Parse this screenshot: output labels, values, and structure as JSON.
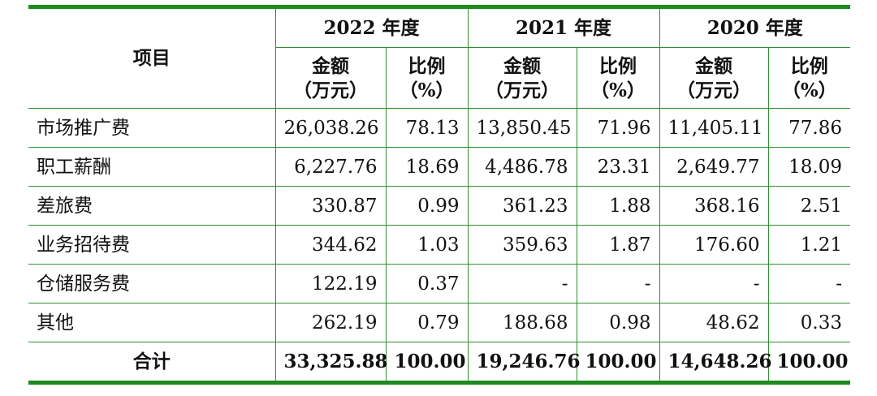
{
  "header": {
    "item": "项目",
    "years": [
      "2022 年度",
      "2021 年度",
      "2020 年度"
    ],
    "amount_line1": "金额",
    "amount_line2": "（万元）",
    "ratio_line1": "比例",
    "ratio_line2": "（%）"
  },
  "rows": [
    {
      "name": "市场推广费",
      "values": [
        "26,038.26",
        "78.13",
        "13,850.45",
        "71.96",
        "11,405.11",
        "77.86"
      ]
    },
    {
      "name": "职工薪酬",
      "values": [
        "6,227.76",
        "18.69",
        "4,486.78",
        "23.31",
        "2,649.77",
        "18.09"
      ]
    },
    {
      "name": "差旅费",
      "values": [
        "330.87",
        "0.99",
        "361.23",
        "1.88",
        "368.16",
        "2.51"
      ]
    },
    {
      "name": "业务招待费",
      "values": [
        "344.62",
        "1.03",
        "359.63",
        "1.87",
        "176.60",
        "1.21"
      ]
    },
    {
      "name": "仓储服务费",
      "values": [
        "122.19",
        "0.37",
        "-",
        "-",
        "-",
        "-"
      ]
    },
    {
      "name": "其他",
      "values": [
        "262.19",
        "0.79",
        "188.68",
        "0.98",
        "48.62",
        "0.33"
      ]
    }
  ],
  "total": {
    "name": "合计",
    "values": [
      "33,325.88",
      "100.00",
      "19,246.76",
      "100.00",
      "14,648.26",
      "100.00"
    ]
  }
}
